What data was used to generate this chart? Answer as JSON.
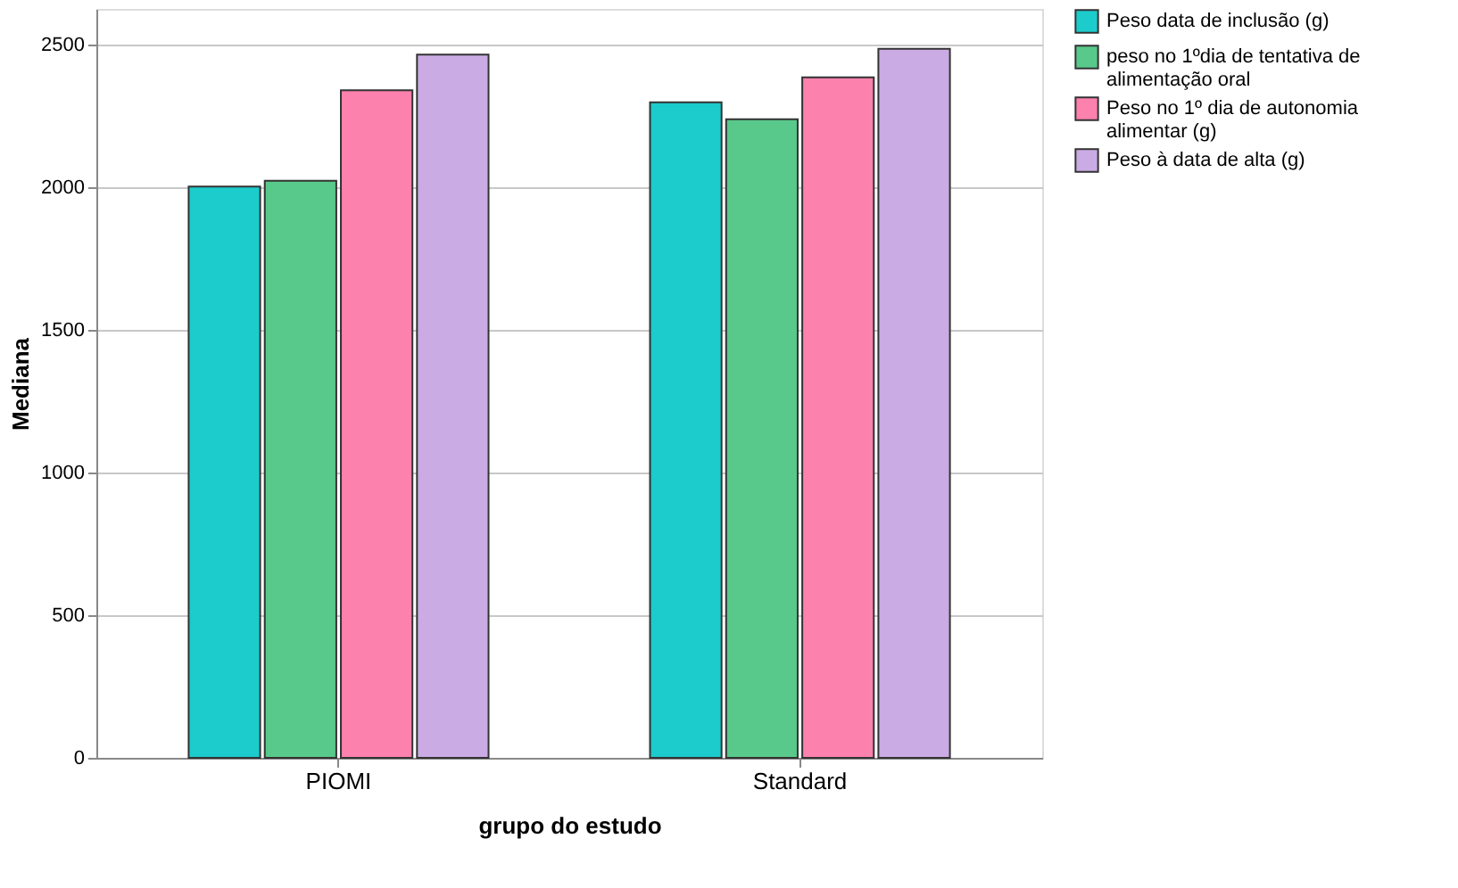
{
  "chart_data": {
    "type": "bar",
    "xlabel": "grupo do estudo",
    "ylabel": "Mediana",
    "categories": [
      "PIOMI",
      "Standard"
    ],
    "series": [
      {
        "name": "Peso data de inclusão (g)",
        "color": "#1ccbcb",
        "values": [
          2002,
          2298
        ]
      },
      {
        "name": "peso no 1ºdia de tentativa de\nalimentação oral",
        "color": "#58c98a",
        "values": [
          2023,
          2238
        ]
      },
      {
        "name": "Peso no 1º dia de autonomia\nalimentar (g)",
        "color": "#fc81ad",
        "values": [
          2340,
          2385
        ]
      },
      {
        "name": "Peso à data de alta (g)",
        "color": "#cbabe3",
        "values": [
          2465,
          2485
        ]
      }
    ],
    "ylim": [
      0,
      2625
    ],
    "yticks": [
      0,
      500,
      1000,
      1500,
      2000,
      2500
    ],
    "grid": "y",
    "legend": "top right"
  }
}
